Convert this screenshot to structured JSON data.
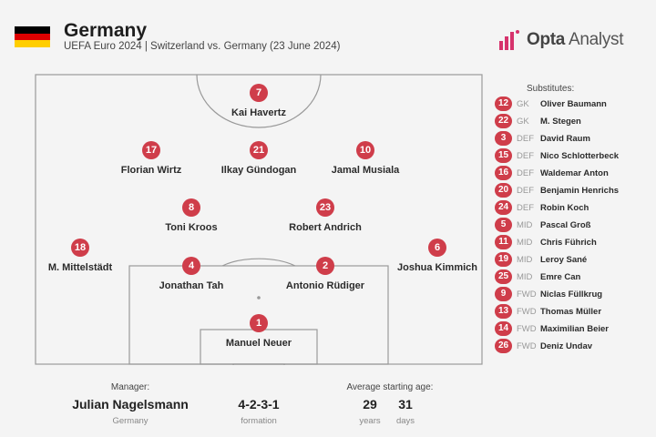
{
  "header": {
    "title": "Germany",
    "subtitle": "UEFA Euro 2024 | Switzerland vs. Germany (23 June 2024)",
    "flag_colors": [
      "#000000",
      "#dd0000",
      "#ffce00"
    ]
  },
  "brand": {
    "name_bold": "Opta",
    "name_light": " Analyst",
    "accent": "#d6336c"
  },
  "starters": [
    {
      "number": "7",
      "name": "Kai Havertz"
    },
    {
      "number": "17",
      "name": "Florian Wirtz"
    },
    {
      "number": "21",
      "name": "Ilkay Gündogan"
    },
    {
      "number": "10",
      "name": "Jamal Musiala"
    },
    {
      "number": "8",
      "name": "Toni Kroos"
    },
    {
      "number": "23",
      "name": "Robert Andrich"
    },
    {
      "number": "18",
      "name": "M. Mittelstädt"
    },
    {
      "number": "6",
      "name": "Joshua Kimmich"
    },
    {
      "number": "4",
      "name": "Jonathan Tah"
    },
    {
      "number": "2",
      "name": "Antonio Rüdiger"
    },
    {
      "number": "1",
      "name": "Manuel Neuer"
    }
  ],
  "substitutes": {
    "title": "Substitutes:",
    "items": [
      {
        "number": "12",
        "pos": "GK",
        "name": "Oliver Baumann"
      },
      {
        "number": "22",
        "pos": "GK",
        "name": "M. Stegen"
      },
      {
        "number": "3",
        "pos": "DEF",
        "name": "David Raum"
      },
      {
        "number": "15",
        "pos": "DEF",
        "name": "Nico Schlotterbeck"
      },
      {
        "number": "16",
        "pos": "DEF",
        "name": "Waldemar Anton"
      },
      {
        "number": "20",
        "pos": "DEF",
        "name": "Benjamin Henrichs"
      },
      {
        "number": "24",
        "pos": "DEF",
        "name": "Robin Koch"
      },
      {
        "number": "5",
        "pos": "MID",
        "name": "Pascal Groß"
      },
      {
        "number": "11",
        "pos": "MID",
        "name": "Chris Führich"
      },
      {
        "number": "19",
        "pos": "MID",
        "name": "Leroy Sané"
      },
      {
        "number": "25",
        "pos": "MID",
        "name": "Emre Can"
      },
      {
        "number": "9",
        "pos": "FWD",
        "name": "Niclas Füllkrug"
      },
      {
        "number": "13",
        "pos": "FWD",
        "name": "Thomas Müller"
      },
      {
        "number": "14",
        "pos": "FWD",
        "name": "Maximilian Beier"
      },
      {
        "number": "26",
        "pos": "FWD",
        "name": "Deniz Undav"
      }
    ]
  },
  "footer": {
    "manager_label": "Manager:",
    "manager_name": "Julian Nagelsmann",
    "manager_team": "Germany",
    "formation": "4-2-3-1",
    "formation_label": "formation",
    "age_label": "Average starting age:",
    "age_years": "29",
    "age_years_label": "years",
    "age_days": "31",
    "age_days_label": "days"
  },
  "colors": {
    "badge": "#cf3d4a",
    "pitch_line": "#999999",
    "background": "#f4f4f4"
  }
}
